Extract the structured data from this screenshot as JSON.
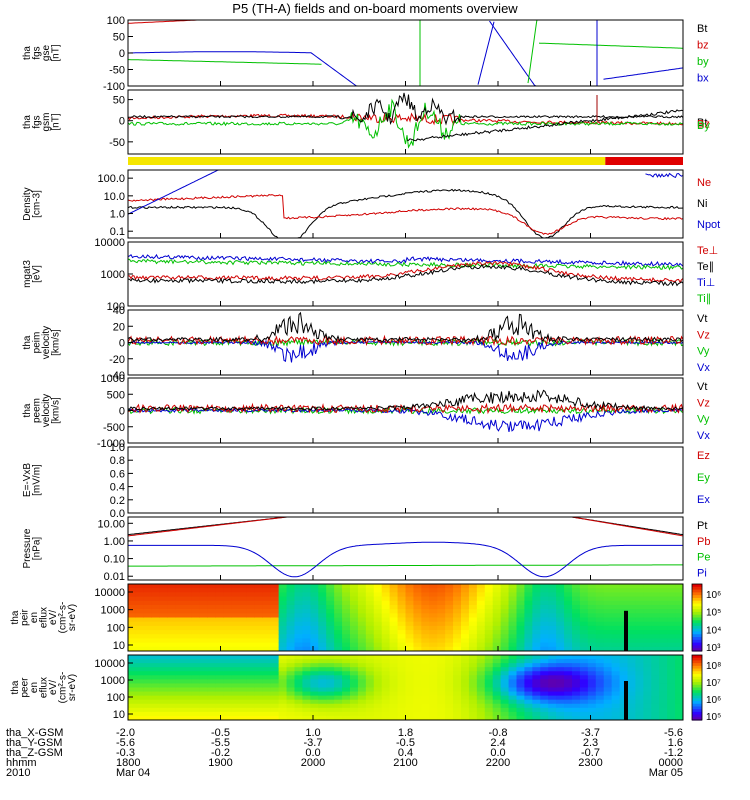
{
  "title": "P5 (TH-A) fields and on-board moments overview",
  "chart_data": [
    {
      "type": "line",
      "panel": "fgs_gse",
      "ylabel": [
        "tha",
        "fgs",
        "gse",
        "[nT]"
      ],
      "yticks": [
        "100",
        "50",
        "0",
        "-50",
        "-100"
      ],
      "ylim": [
        -100,
        100
      ],
      "legend": [
        {
          "label": "Bt",
          "color": "#000000"
        },
        {
          "label": "bz",
          "color": "#d00000"
        },
        {
          "label": "by",
          "color": "#00c000"
        },
        {
          "label": "bx",
          "color": "#0000d0"
        }
      ]
    },
    {
      "type": "line",
      "panel": "fgs_gsm",
      "ylabel": [
        "tha",
        "fgs",
        "gsm",
        "[nT]"
      ],
      "yticks": [
        "50",
        "0",
        "-50"
      ],
      "ylim": [
        -75,
        75
      ],
      "legend": [
        {
          "label": "Bt",
          "color": "#000000"
        },
        {
          "label": "Bz",
          "color": "#d00000"
        },
        {
          "label": "By",
          "color": "#00c000"
        }
      ],
      "status_bar": [
        {
          "from": 0.0,
          "to": 0.86,
          "color": "#f5e600"
        },
        {
          "from": 0.86,
          "to": 1.0,
          "color": "#e00000"
        }
      ]
    },
    {
      "type": "line",
      "panel": "density",
      "ylabel": [
        "Density",
        "[cm-3]"
      ],
      "yticks": [
        "100.0",
        "10.0",
        "1.0",
        "0.1"
      ],
      "scale": "log",
      "legend": [
        {
          "label": "Ne",
          "color": "#d00000"
        },
        {
          "label": "Ni",
          "color": "#000000"
        },
        {
          "label": "Npot",
          "color": "#0000d0"
        }
      ]
    },
    {
      "type": "line",
      "panel": "temperature",
      "ylabel": [
        "mgat3",
        "[eV]"
      ],
      "yticks": [
        "10000",
        "1000",
        "100"
      ],
      "scale": "log",
      "legend": [
        {
          "label": "Te⊥",
          "color": "#d00000"
        },
        {
          "label": "Te∥",
          "color": "#000000"
        },
        {
          "label": "Ti⊥",
          "color": "#0000d0"
        },
        {
          "label": "Ti∥",
          "color": "#00c000"
        }
      ]
    },
    {
      "type": "line",
      "panel": "peim_velocity",
      "ylabel": [
        "tha",
        "peim",
        "velocity",
        "[km/s]"
      ],
      "yticks": [
        "40",
        "20",
        "0",
        "-20",
        "-40"
      ],
      "ylim": [
        -40,
        40
      ],
      "legend": [
        {
          "label": "Vt",
          "color": "#000000"
        },
        {
          "label": "Vz",
          "color": "#d00000"
        },
        {
          "label": "Vy",
          "color": "#00c000"
        },
        {
          "label": "Vx",
          "color": "#0000d0"
        }
      ]
    },
    {
      "type": "line",
      "panel": "peem_velocity",
      "ylabel": [
        "tha",
        "peem",
        "velocity",
        "[km/s]"
      ],
      "yticks": [
        "1000",
        "500",
        "0",
        "-500",
        "-1000"
      ],
      "ylim": [
        -1000,
        1000
      ],
      "legend": [
        {
          "label": "Vt",
          "color": "#000000"
        },
        {
          "label": "Vz",
          "color": "#d00000"
        },
        {
          "label": "Vy",
          "color": "#00c000"
        },
        {
          "label": "Vx",
          "color": "#0000d0"
        }
      ]
    },
    {
      "type": "line",
      "panel": "e_field",
      "ylabel": [
        "E=-VxB",
        "[mV/m]"
      ],
      "yticks": [
        "1.0",
        "0.8",
        "0.6",
        "0.4",
        "0.2",
        "0.0"
      ],
      "ylim": [
        0,
        1
      ],
      "legend": [
        {
          "label": "Ez",
          "color": "#d00000"
        },
        {
          "label": "Ey",
          "color": "#00c000"
        },
        {
          "label": "Ex",
          "color": "#0000d0"
        }
      ]
    },
    {
      "type": "line",
      "panel": "pressure",
      "ylabel": [
        "Pressure",
        "[nPa]"
      ],
      "yticks": [
        "10.00",
        "1.00",
        "0.10",
        "0.01"
      ],
      "scale": "log",
      "legend": [
        {
          "label": "Pt",
          "color": "#000000"
        },
        {
          "label": "Pb",
          "color": "#d00000"
        },
        {
          "label": "Pe",
          "color": "#00c000"
        },
        {
          "label": "Pi",
          "color": "#0000d0"
        }
      ]
    },
    {
      "type": "heatmap",
      "panel": "peir_spectrogram",
      "ylabel": [
        "tha",
        "peir",
        "en",
        "eflux",
        "eV/",
        "(cm²-s-",
        "sr-eV)"
      ],
      "yticks": [
        "10000",
        "1000",
        "100",
        "10"
      ],
      "colorbar": [
        "10⁶",
        "10⁵",
        "10⁴",
        "10³"
      ]
    },
    {
      "type": "heatmap",
      "panel": "peer_spectrogram",
      "ylabel": [
        "tha",
        "peer",
        "en",
        "eflux",
        "eV/",
        "(cm²-s-",
        "sr-eV)"
      ],
      "yticks": [
        "10000",
        "1000",
        "100",
        "10"
      ],
      "colorbar": [
        "10⁸",
        "10⁷",
        "10⁶",
        "10⁵"
      ]
    }
  ],
  "xaxis": {
    "row_labels": [
      "tha_X-GSM",
      "tha_Y-GSM",
      "tha_Z-GSM",
      "hhmm",
      "2010"
    ],
    "ticks": [
      {
        "x": "-2.0",
        "y": "-5.6",
        "z": "-0.3",
        "t": "1800",
        "d": "Mar 04"
      },
      {
        "x": "-0.5",
        "y": "-5.5",
        "z": "-0.2",
        "t": "1900",
        "d": ""
      },
      {
        "x": "1.0",
        "y": "-3.7",
        "z": "0.0",
        "t": "2000",
        "d": ""
      },
      {
        "x": "1.8",
        "y": "-0.5",
        "z": "0.4",
        "t": "2100",
        "d": ""
      },
      {
        "x": "-0.8",
        "y": "2.4",
        "z": "0.0",
        "t": "2200",
        "d": ""
      },
      {
        "x": "-3.7",
        "y": "2.3",
        "z": "-0.7",
        "t": "2300",
        "d": ""
      },
      {
        "x": "-5.6",
        "y": "1.6",
        "z": "-1.2",
        "t": "0000",
        "d": "Mar 05"
      }
    ]
  }
}
